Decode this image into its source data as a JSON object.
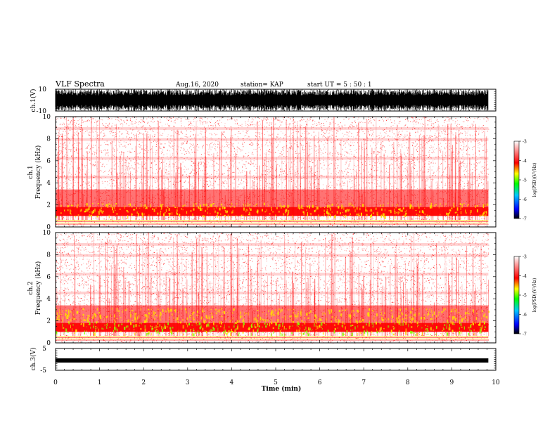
{
  "header": {
    "title": "VLF Spectra",
    "date": "Aug.16, 2020",
    "station": "station= KAP",
    "start": "start  UT =   5 : 50 : 1"
  },
  "colors": {
    "spectrogram_base": "#ff0000",
    "hot": "#ffe000",
    "warm": "#88ff00",
    "waveform": "#000000"
  },
  "chart_data": [
    {
      "type": "line",
      "name": "ch1-waveform",
      "ylabel": "ch.1(V)",
      "ylim": [
        -10,
        10
      ],
      "yticks": [
        "10",
        "-10"
      ],
      "xlim": [
        0,
        10
      ]
    },
    {
      "type": "heatmap",
      "name": "ch1-spectrogram",
      "ylabel": "ch.1\nFrequency (kHz)",
      "ylim": [
        0,
        10
      ],
      "yticks": [
        "0",
        "2",
        "4",
        "6",
        "8",
        "10"
      ],
      "xlim": [
        0,
        10
      ],
      "data_end_min": 9.83,
      "colorbar": {
        "label": "log(PSD)(V²/Hz)",
        "range": [
          -7,
          -3
        ],
        "ticks": [
          "-3",
          "-4",
          "-5",
          "-6",
          "-7"
        ]
      }
    },
    {
      "type": "heatmap",
      "name": "ch2-spectrogram",
      "ylabel": "ch.2\nFrequency (kHz)",
      "ylim": [
        0,
        10
      ],
      "yticks": [
        "0",
        "2",
        "4",
        "6",
        "8",
        "10"
      ],
      "xlim": [
        0,
        10
      ],
      "data_end_min": 9.83,
      "colorbar": {
        "label": "log(PSD)(V²/Hz)",
        "range": [
          -7,
          -3
        ],
        "ticks": [
          "-3",
          "-4",
          "-5",
          "-6",
          "-7"
        ]
      }
    },
    {
      "type": "line",
      "name": "ch3-waveform",
      "ylabel": "ch.3(V)",
      "ylim": [
        -5,
        5
      ],
      "yticks": [
        "5",
        "0",
        "-5"
      ],
      "xlim": [
        0,
        10
      ],
      "level": -0.5
    }
  ],
  "xaxis": {
    "label": "Time (min)",
    "ticks": [
      "0",
      "1",
      "2",
      "3",
      "4",
      "5",
      "6",
      "7",
      "8",
      "9",
      "10"
    ]
  }
}
